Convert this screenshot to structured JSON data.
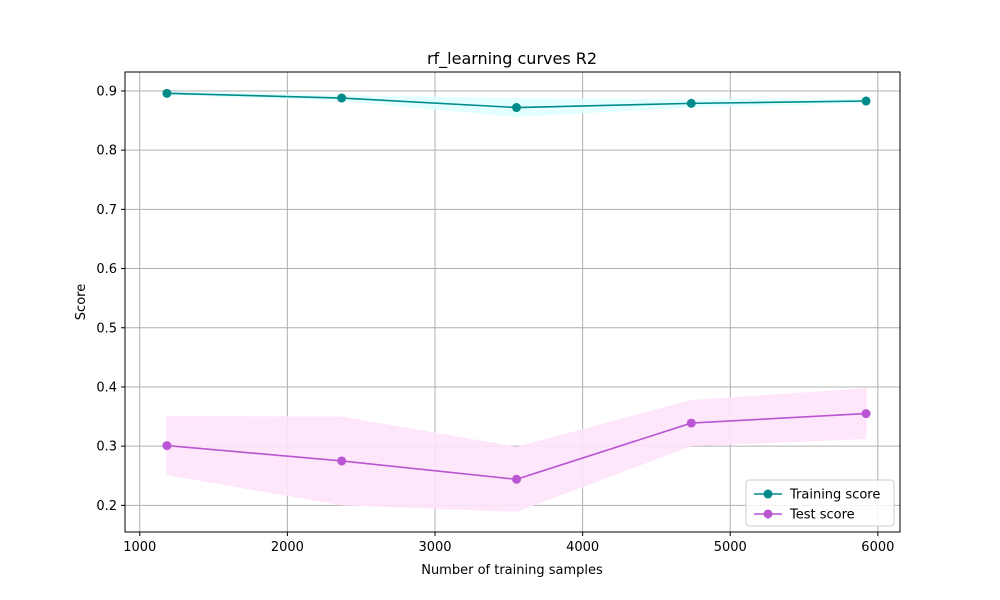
{
  "chart_data": {
    "type": "line",
    "title": "rf_learning curves R2",
    "xlabel": "Number of training samples",
    "ylabel": "Score",
    "xlim": [
      900,
      6150
    ],
    "ylim": [
      0.155,
      0.932
    ],
    "xticks": [
      1000,
      2000,
      3000,
      4000,
      5000,
      6000
    ],
    "yticks": [
      0.2,
      0.3,
      0.4,
      0.5,
      0.6,
      0.7,
      0.8,
      0.9
    ],
    "grid": true,
    "legend_position": "lower-right",
    "x": [
      1184,
      2368,
      3552,
      4736,
      5920
    ],
    "series": [
      {
        "name": "Training score",
        "color": "#008b8b",
        "band_color": "#e0ffff",
        "values": [
          0.896,
          0.888,
          0.872,
          0.879,
          0.883
        ],
        "lower": [
          0.894,
          0.884,
          0.857,
          0.873,
          0.88
        ],
        "upper": [
          0.898,
          0.892,
          0.887,
          0.885,
          0.886
        ]
      },
      {
        "name": "Test score",
        "color": "#ba55d3",
        "band_color": "#ffe4fb",
        "values": [
          0.301,
          0.275,
          0.244,
          0.339,
          0.355
        ],
        "lower": [
          0.252,
          0.201,
          0.19,
          0.301,
          0.313
        ],
        "upper": [
          0.35,
          0.349,
          0.298,
          0.377,
          0.397
        ]
      }
    ]
  }
}
